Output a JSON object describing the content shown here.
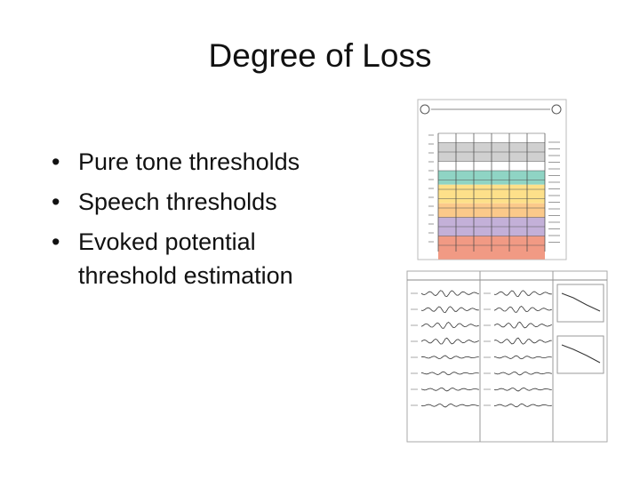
{
  "title": "Degree of Loss",
  "bullets": [
    "Pure tone thresholds",
    "Speech thresholds",
    "Evoked potential threshold estimation"
  ]
}
